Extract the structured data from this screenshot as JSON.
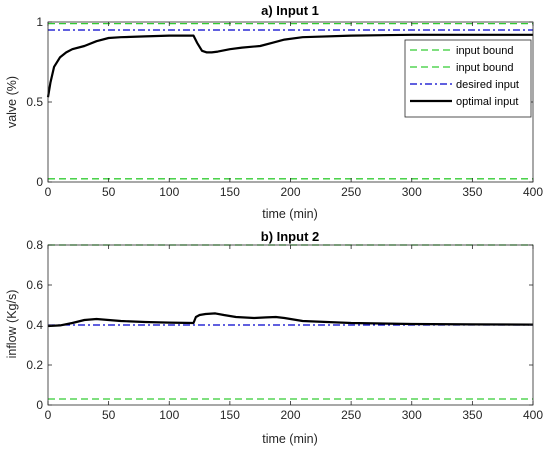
{
  "chart_data": [
    {
      "type": "line",
      "title": "a)    Input 1",
      "xlabel": "time (min)",
      "ylabel": "valve (%)",
      "xlim": [
        0,
        400
      ],
      "ylim": [
        0,
        1
      ],
      "xticks": [
        "0",
        "50",
        "100",
        "150",
        "200",
        "250",
        "300",
        "350",
        "400"
      ],
      "yticks": [
        "0",
        "0.5",
        "1"
      ],
      "ytick_values": [
        0,
        0.5,
        1
      ],
      "grid": false,
      "legend_position": "top-right",
      "series": [
        {
          "name": "input bound",
          "style": "dashed",
          "color": "#33cc33",
          "x": [
            0,
            400
          ],
          "y": [
            0.99,
            0.99
          ]
        },
        {
          "name": "input bound",
          "style": "dashed",
          "color": "#33cc33",
          "x": [
            0,
            400
          ],
          "y": [
            0.02,
            0.02
          ]
        },
        {
          "name": "desired input",
          "style": "dashdot",
          "color": "#0000cc",
          "x": [
            0,
            400
          ],
          "y": [
            0.95,
            0.95
          ]
        },
        {
          "name": "optimal input",
          "style": "solid",
          "color": "#000000",
          "x": [
            0,
            2,
            5,
            10,
            15,
            20,
            30,
            40,
            50,
            60,
            80,
            100,
            120,
            123,
            127,
            131,
            135,
            140,
            150,
            160,
            175,
            185,
            195,
            210,
            250,
            300,
            350,
            400
          ],
          "y": [
            0.53,
            0.62,
            0.72,
            0.78,
            0.81,
            0.83,
            0.85,
            0.88,
            0.9,
            0.905,
            0.91,
            0.915,
            0.915,
            0.87,
            0.82,
            0.81,
            0.81,
            0.815,
            0.83,
            0.84,
            0.85,
            0.87,
            0.89,
            0.905,
            0.915,
            0.92,
            0.92,
            0.92
          ]
        }
      ]
    },
    {
      "type": "line",
      "title": "b)    Input 2",
      "xlabel": "time (min)",
      "ylabel": "inflow (Kg/s)",
      "xlim": [
        0,
        400
      ],
      "ylim": [
        0,
        0.8
      ],
      "xticks": [
        "0",
        "50",
        "100",
        "150",
        "200",
        "250",
        "300",
        "350",
        "400"
      ],
      "yticks": [
        "0",
        "0.2",
        "0.4",
        "0.6",
        "0.8"
      ],
      "ytick_values": [
        0,
        0.2,
        0.4,
        0.6,
        0.8
      ],
      "grid": false,
      "series": [
        {
          "name": "input bound",
          "style": "dashed",
          "color": "#33cc33",
          "x": [
            0,
            400
          ],
          "y": [
            0.8,
            0.8
          ]
        },
        {
          "name": "input bound",
          "style": "dashed",
          "color": "#33cc33",
          "x": [
            0,
            400
          ],
          "y": [
            0.03,
            0.03
          ]
        },
        {
          "name": "desired input",
          "style": "dashdot",
          "color": "#0000cc",
          "x": [
            0,
            400
          ],
          "y": [
            0.4,
            0.4
          ]
        },
        {
          "name": "optimal input",
          "style": "solid",
          "color": "#000000",
          "x": [
            0,
            10,
            20,
            30,
            40,
            50,
            60,
            80,
            100,
            120,
            122,
            125,
            130,
            138,
            145,
            155,
            170,
            180,
            188,
            195,
            210,
            250,
            300,
            350,
            400
          ],
          "y": [
            0.395,
            0.398,
            0.41,
            0.425,
            0.43,
            0.425,
            0.42,
            0.415,
            0.412,
            0.41,
            0.44,
            0.45,
            0.455,
            0.458,
            0.45,
            0.44,
            0.435,
            0.438,
            0.44,
            0.435,
            0.42,
            0.41,
            0.405,
            0.403,
            0.402
          ]
        }
      ]
    }
  ]
}
